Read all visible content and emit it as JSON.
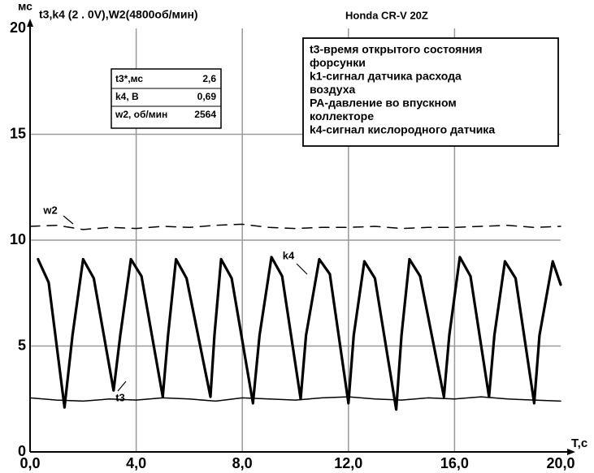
{
  "chart_data": {
    "type": "line",
    "title": "t3,k4 (2 . 0V),W2(4800об/мин)",
    "subtitle": "Honda CR-V   20Z",
    "xlabel": "Т,с",
    "ylabel": "мс",
    "xlim": [
      0,
      20
    ],
    "ylim": [
      0,
      20
    ],
    "xticks": [
      {
        "value": 0,
        "label": "0,0"
      },
      {
        "value": 4,
        "label": "4,0"
      },
      {
        "value": 8,
        "label": "8,0"
      },
      {
        "value": 12,
        "label": "12,0"
      },
      {
        "value": 16,
        "label": "16,0"
      },
      {
        "value": 20,
        "label": "20,0"
      }
    ],
    "yticks": [
      0,
      5,
      10,
      15,
      20
    ],
    "grid": true,
    "series": [
      {
        "name": "k4",
        "color": "#000000",
        "x": [
          0.3,
          0.7,
          1.3,
          1.6,
          2.0,
          2.4,
          3.15,
          3.4,
          3.8,
          4.2,
          5.0,
          5.2,
          5.5,
          5.9,
          6.8,
          6.95,
          7.2,
          7.6,
          8.4,
          8.65,
          9.1,
          9.5,
          10.2,
          10.4,
          10.9,
          11.3,
          12.0,
          12.2,
          12.6,
          13.0,
          13.8,
          14.0,
          14.3,
          14.7,
          15.6,
          15.8,
          16.2,
          16.6,
          17.3,
          17.5,
          17.9,
          18.3,
          19.0,
          19.2,
          19.7,
          20.0
        ],
        "values": [
          9.1,
          8.0,
          2.1,
          5.5,
          9.1,
          8.2,
          2.9,
          5.5,
          9.1,
          8.3,
          2.6,
          5.5,
          9.1,
          8.2,
          2.6,
          5.5,
          9.1,
          8.2,
          2.3,
          5.5,
          9.2,
          8.3,
          2.5,
          5.5,
          9.1,
          8.4,
          2.3,
          5.5,
          9.0,
          8.2,
          2.0,
          5.5,
          9.1,
          8.3,
          2.6,
          5.5,
          9.2,
          8.3,
          2.6,
          5.5,
          9.0,
          8.2,
          2.3,
          5.5,
          9.0,
          7.9
        ]
      },
      {
        "name": "t3",
        "color": "#000000",
        "x": [
          0,
          1,
          2,
          3,
          4,
          5,
          6,
          7,
          8,
          9,
          10,
          11,
          12,
          13,
          14,
          15,
          16,
          17,
          18,
          19,
          20
        ],
        "values": [
          2.55,
          2.45,
          2.4,
          2.5,
          2.45,
          2.55,
          2.5,
          2.4,
          2.55,
          2.5,
          2.45,
          2.55,
          2.6,
          2.5,
          2.45,
          2.55,
          2.5,
          2.6,
          2.5,
          2.45,
          2.4
        ]
      },
      {
        "name": "w2",
        "color": "#000000",
        "x": [
          0,
          1,
          2,
          3,
          4,
          5,
          6,
          7,
          8,
          9,
          10,
          11,
          12,
          13,
          14,
          15,
          16,
          17,
          18,
          19,
          20
        ],
        "values": [
          10.65,
          10.7,
          10.5,
          10.6,
          10.55,
          10.65,
          10.6,
          10.7,
          10.75,
          10.6,
          10.55,
          10.6,
          10.6,
          10.65,
          10.55,
          10.6,
          10.6,
          10.65,
          10.7,
          10.6,
          10.65
        ]
      }
    ],
    "info_box": {
      "rows": [
        [
          "t3*,мс",
          "2,6"
        ],
        [
          "k4, В",
          "0,69"
        ],
        [
          "w2, об/мин",
          "2564"
        ]
      ]
    },
    "legend_box": {
      "lines": [
        "t3-время открытого состояния",
        "форсунки",
        "k1-сигнал датчика расхода",
        "воздуха",
        "PA-давление во впускном",
        "коллекторе",
        "k4-сигнал кислородного датчика"
      ]
    }
  }
}
